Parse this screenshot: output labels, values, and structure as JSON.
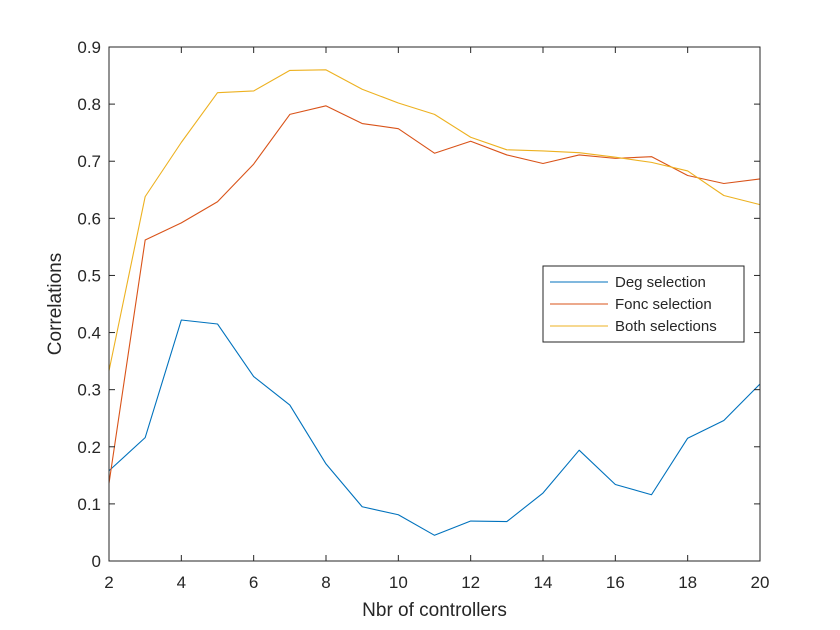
{
  "chart_data": {
    "type": "line",
    "title": "",
    "xlabel": "Nbr of controllers",
    "ylabel": "Correlations",
    "xlim": [
      2,
      20
    ],
    "ylim": [
      0,
      0.9
    ],
    "grid": false,
    "legend_position": "right",
    "x_ticks": [
      "2",
      "4",
      "6",
      "8",
      "10",
      "12",
      "14",
      "16",
      "18",
      "20"
    ],
    "y_ticks": [
      "0",
      "0.1",
      "0.2",
      "0.3",
      "0.4",
      "0.5",
      "0.6",
      "0.7",
      "0.8",
      "0.9"
    ],
    "x": [
      2,
      3,
      4,
      5,
      6,
      7,
      8,
      9,
      10,
      11,
      12,
      13,
      14,
      15,
      16,
      17,
      18,
      19,
      20
    ],
    "series": [
      {
        "name": "Deg selection",
        "color": "#0072BD",
        "values": [
          0.158,
          0.216,
          0.422,
          0.415,
          0.323,
          0.273,
          0.17,
          0.095,
          0.081,
          0.045,
          0.07,
          0.069,
          0.119,
          0.194,
          0.134,
          0.116,
          0.215,
          0.246,
          0.31
        ]
      },
      {
        "name": "Fonc selection",
        "color": "#D95319",
        "values": [
          0.136,
          0.562,
          0.592,
          0.629,
          0.695,
          0.782,
          0.797,
          0.766,
          0.757,
          0.714,
          0.735,
          0.711,
          0.696,
          0.711,
          0.705,
          0.708,
          0.675,
          0.661,
          0.669
        ]
      },
      {
        "name": "Both selections",
        "color": "#EDB120",
        "values": [
          0.333,
          0.638,
          0.733,
          0.82,
          0.823,
          0.859,
          0.86,
          0.826,
          0.802,
          0.782,
          0.742,
          0.72,
          0.718,
          0.715,
          0.707,
          0.698,
          0.683,
          0.64,
          0.624
        ]
      }
    ]
  }
}
